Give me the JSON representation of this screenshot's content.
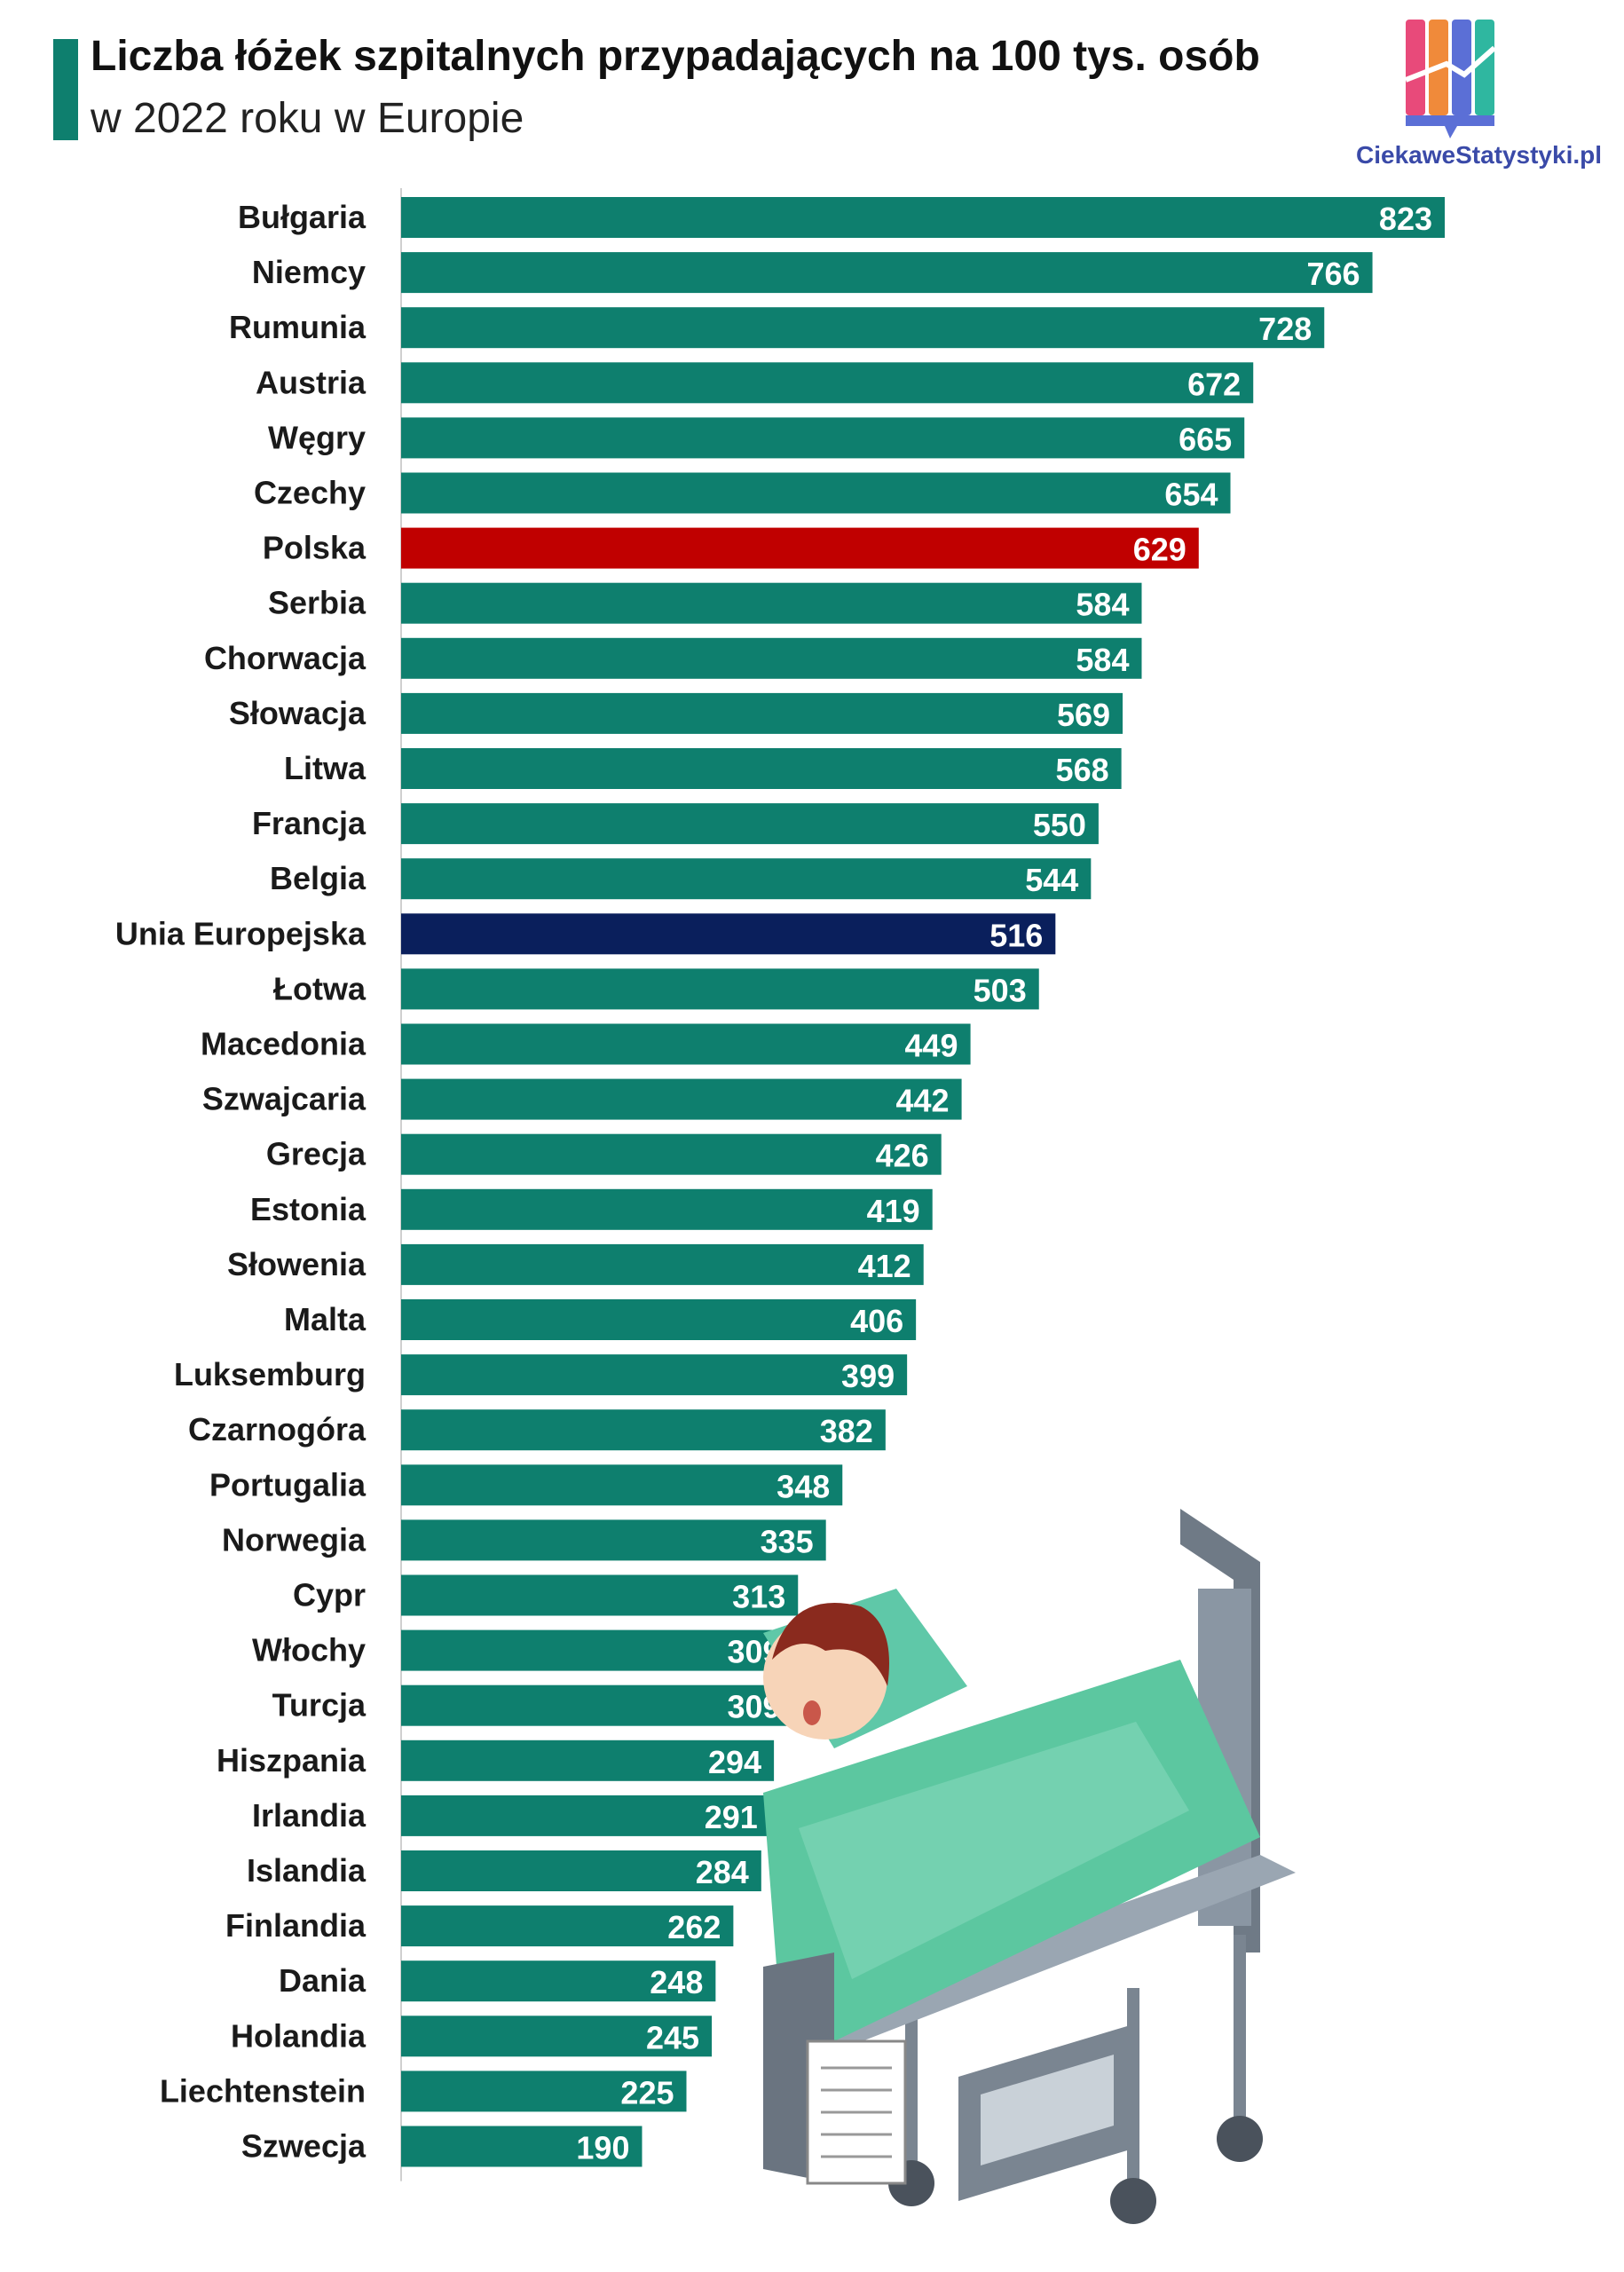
{
  "title": "Liczba łóżek szpitalnych przypadających na 100 tys. osób",
  "subtitle": "w 2022 roku w Europie",
  "logo": {
    "text": "CiekaweStatystyki.pl",
    "icon": "bar-chart-logo-icon"
  },
  "illustration": {
    "icon": "hospital-bed-patient-icon"
  },
  "colors": {
    "default": "#0e7f6e",
    "highlight_poland": "#c00000",
    "highlight_eu": "#0a1f5c",
    "accent": "#0e7f6e"
  },
  "chart_data": {
    "type": "bar",
    "orientation": "horizontal",
    "categories": [
      "Bułgaria",
      "Niemcy",
      "Rumunia",
      "Austria",
      "Węgry",
      "Czechy",
      "Polska",
      "Serbia",
      "Chorwacja",
      "Słowacja",
      "Litwa",
      "Francja",
      "Belgia",
      "Unia Europejska",
      "Łotwa",
      "Macedonia",
      "Szwajcaria",
      "Grecja",
      "Estonia",
      "Słowenia",
      "Malta",
      "Luksemburg",
      "Czarnogóra",
      "Portugalia",
      "Norwegia",
      "Cypr",
      "Włochy",
      "Turcja",
      "Hiszpania",
      "Irlandia",
      "Islandia",
      "Finlandia",
      "Dania",
      "Holandia",
      "Liechtenstein",
      "Szwecja"
    ],
    "values": [
      823,
      766,
      728,
      672,
      665,
      654,
      629,
      584,
      584,
      569,
      568,
      550,
      544,
      516,
      503,
      449,
      442,
      426,
      419,
      412,
      406,
      399,
      382,
      348,
      335,
      313,
      309,
      309,
      294,
      291,
      284,
      262,
      248,
      245,
      225,
      190
    ],
    "value_labels": [
      "823",
      "766",
      "728",
      "672",
      "665",
      "654",
      "629",
      "584",
      "584",
      "569",
      "568",
      "550",
      "544",
      "516",
      "503",
      "449",
      "442",
      "426",
      "419",
      "412",
      "406",
      "399",
      "382",
      "348",
      "335",
      "313",
      "309",
      "309",
      "294",
      "291",
      "284",
      "262",
      "248",
      "245",
      "225",
      "190"
    ],
    "highlights": {
      "Polska": "#c00000",
      "Unia Europejska": "#0a1f5c"
    },
    "xlim": [
      0,
      823
    ],
    "grid": false,
    "legend": "none"
  }
}
